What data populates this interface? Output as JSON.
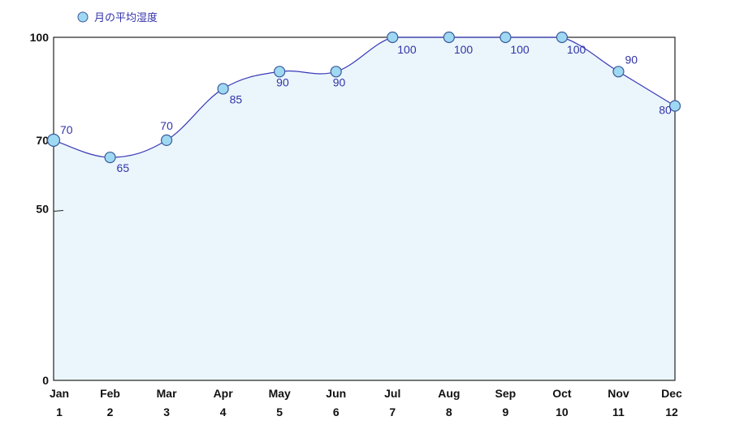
{
  "chart_data": {
    "type": "area",
    "legend": {
      "placement": "top-left",
      "entries": [
        "月の平均湿度"
      ]
    },
    "series": [
      {
        "name": "月の平均湿度",
        "values": [
          70,
          65,
          70,
          85,
          90,
          90,
          100,
          100,
          100,
          100,
          90,
          80
        ],
        "value_labels": [
          "70",
          "65",
          "70",
          "85",
          "90",
          "90",
          "100",
          "100",
          "100",
          "100",
          "90",
          "80"
        ]
      }
    ],
    "x": [
      1,
      2,
      3,
      4,
      5,
      6,
      7,
      8,
      9,
      10,
      11,
      12
    ],
    "x_tick_labels": [
      "1",
      "2",
      "3",
      "4",
      "5",
      "6",
      "7",
      "8",
      "9",
      "10",
      "11",
      "12"
    ],
    "categories": [
      "Jan",
      "Feb",
      "Mar",
      "Apr",
      "May",
      "Jun",
      "Jul",
      "Aug",
      "Sep",
      "Oct",
      "Nov",
      "Dec"
    ],
    "y_ticks": [
      0,
      50,
      70,
      100
    ],
    "y_tick_labels": [
      "0",
      "50",
      "70",
      "100"
    ],
    "ylim": [
      0,
      100
    ],
    "grid": false,
    "colors": {
      "line": "#3a3ab8",
      "fill": "#eaf6fb",
      "marker_fill": "#9fd8f2",
      "marker_stroke": "#3a5a9a",
      "axis": "#222222",
      "label": "#3333aa"
    }
  }
}
